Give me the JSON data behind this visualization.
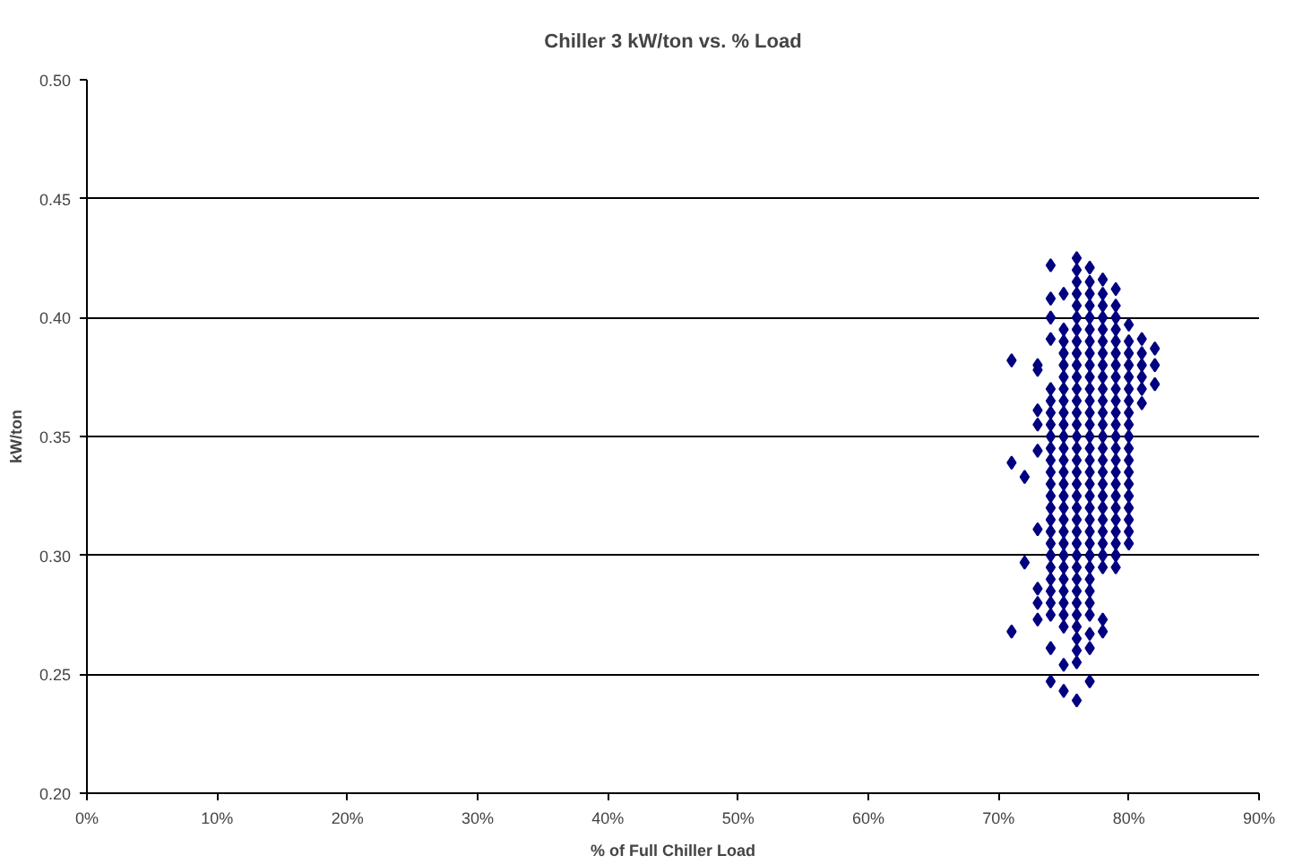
{
  "chart_data": {
    "type": "scatter",
    "title": "Chiller 3 kW/ton vs. % Load",
    "xlabel": "% of Full Chiller Load",
    "ylabel": "kW/ton",
    "xlim": [
      0,
      90
    ],
    "ylim": [
      0.2,
      0.5
    ],
    "xticks": [
      {
        "value": 0,
        "label": "0%"
      },
      {
        "value": 10,
        "label": "10%"
      },
      {
        "value": 20,
        "label": "20%"
      },
      {
        "value": 30,
        "label": "30%"
      },
      {
        "value": 40,
        "label": "40%"
      },
      {
        "value": 50,
        "label": "50%"
      },
      {
        "value": 60,
        "label": "60%"
      },
      {
        "value": 70,
        "label": "70%"
      },
      {
        "value": 80,
        "label": "80%"
      },
      {
        "value": 90,
        "label": "90%"
      }
    ],
    "yticks": [
      {
        "value": 0.2,
        "label": "0.20"
      },
      {
        "value": 0.25,
        "label": "0.25"
      },
      {
        "value": 0.3,
        "label": "0.30"
      },
      {
        "value": 0.35,
        "label": "0.35"
      },
      {
        "value": 0.4,
        "label": "0.40"
      },
      {
        "value": 0.45,
        "label": "0.45"
      },
      {
        "value": 0.5,
        "label": "0.50"
      }
    ],
    "grid": "y",
    "marker": "diamond",
    "series": [
      {
        "color": "#000080",
        "x": [
          71,
          71,
          71
        ],
        "values": [
          0.382,
          0.339,
          0.268
        ]
      },
      {
        "color": "#000080",
        "x": [
          72,
          72
        ],
        "values": [
          0.333,
          0.297
        ]
      },
      {
        "color": "#000080",
        "x": [
          73,
          73,
          73,
          73,
          73,
          73,
          73,
          73,
          73
        ],
        "values": [
          0.38,
          0.378,
          0.361,
          0.355,
          0.344,
          0.311,
          0.286,
          0.28,
          0.273
        ]
      },
      {
        "color": "#000080",
        "x": [
          74,
          74,
          74,
          74,
          74,
          74,
          74,
          74,
          74,
          74,
          74,
          74,
          74,
          74,
          74,
          74,
          74,
          74,
          74,
          74,
          74,
          74,
          74,
          74,
          74,
          74
        ],
        "values": [
          0.422,
          0.408,
          0.4,
          0.391,
          0.37,
          0.365,
          0.36,
          0.355,
          0.35,
          0.345,
          0.34,
          0.335,
          0.33,
          0.325,
          0.32,
          0.315,
          0.31,
          0.305,
          0.3,
          0.295,
          0.29,
          0.285,
          0.28,
          0.275,
          0.261,
          0.247
        ]
      },
      {
        "color": "#000080",
        "x": [
          75,
          75,
          75,
          75,
          75,
          75,
          75,
          75,
          75,
          75,
          75,
          75,
          75,
          75,
          75,
          75,
          75,
          75,
          75,
          75,
          75,
          75,
          75,
          75,
          75,
          75,
          75,
          75,
          75
        ],
        "values": [
          0.41,
          0.395,
          0.39,
          0.385,
          0.38,
          0.375,
          0.37,
          0.365,
          0.36,
          0.355,
          0.35,
          0.345,
          0.34,
          0.335,
          0.33,
          0.325,
          0.32,
          0.315,
          0.31,
          0.305,
          0.3,
          0.295,
          0.29,
          0.285,
          0.28,
          0.275,
          0.27,
          0.254,
          0.243
        ]
      },
      {
        "color": "#000080",
        "x": [
          76,
          76,
          76,
          76,
          76,
          76,
          76,
          76,
          76,
          76,
          76,
          76,
          76,
          76,
          76,
          76,
          76,
          76,
          76,
          76,
          76,
          76,
          76,
          76,
          76,
          76,
          76,
          76,
          76,
          76,
          76,
          76,
          76,
          76,
          76,
          76
        ],
        "values": [
          0.425,
          0.42,
          0.415,
          0.41,
          0.405,
          0.4,
          0.395,
          0.39,
          0.385,
          0.38,
          0.375,
          0.37,
          0.365,
          0.36,
          0.355,
          0.35,
          0.345,
          0.34,
          0.335,
          0.33,
          0.325,
          0.32,
          0.315,
          0.31,
          0.305,
          0.3,
          0.295,
          0.29,
          0.285,
          0.28,
          0.275,
          0.27,
          0.265,
          0.26,
          0.255,
          0.239
        ]
      },
      {
        "color": "#000080",
        "x": [
          77,
          77,
          77,
          77,
          77,
          77,
          77,
          77,
          77,
          77,
          77,
          77,
          77,
          77,
          77,
          77,
          77,
          77,
          77,
          77,
          77,
          77,
          77,
          77,
          77,
          77,
          77,
          77,
          77,
          77,
          77,
          77,
          77
        ],
        "values": [
          0.421,
          0.415,
          0.41,
          0.405,
          0.4,
          0.395,
          0.39,
          0.385,
          0.38,
          0.375,
          0.37,
          0.365,
          0.36,
          0.355,
          0.35,
          0.345,
          0.34,
          0.335,
          0.33,
          0.325,
          0.32,
          0.315,
          0.31,
          0.305,
          0.3,
          0.295,
          0.29,
          0.285,
          0.28,
          0.275,
          0.267,
          0.261,
          0.247
        ]
      },
      {
        "color": "#000080",
        "x": [
          78,
          78,
          78,
          78,
          78,
          78,
          78,
          78,
          78,
          78,
          78,
          78,
          78,
          78,
          78,
          78,
          78,
          78,
          78,
          78,
          78,
          78,
          78,
          78,
          78,
          78,
          78
        ],
        "values": [
          0.416,
          0.41,
          0.405,
          0.4,
          0.395,
          0.39,
          0.385,
          0.38,
          0.375,
          0.37,
          0.365,
          0.36,
          0.355,
          0.35,
          0.345,
          0.34,
          0.335,
          0.33,
          0.325,
          0.32,
          0.315,
          0.31,
          0.305,
          0.3,
          0.295,
          0.273,
          0.268
        ]
      },
      {
        "color": "#000080",
        "x": [
          79,
          79,
          79,
          79,
          79,
          79,
          79,
          79,
          79,
          79,
          79,
          79,
          79,
          79,
          79,
          79,
          79,
          79,
          79,
          79,
          79,
          79,
          79,
          79
        ],
        "values": [
          0.412,
          0.405,
          0.4,
          0.395,
          0.39,
          0.385,
          0.38,
          0.375,
          0.37,
          0.365,
          0.36,
          0.355,
          0.35,
          0.345,
          0.34,
          0.335,
          0.33,
          0.325,
          0.32,
          0.315,
          0.31,
          0.305,
          0.3,
          0.295
        ]
      },
      {
        "color": "#000080",
        "x": [
          80,
          80,
          80,
          80,
          80,
          80,
          80,
          80,
          80,
          80,
          80,
          80,
          80,
          80,
          80,
          80,
          80,
          80,
          80
        ],
        "values": [
          0.397,
          0.39,
          0.385,
          0.38,
          0.375,
          0.37,
          0.365,
          0.36,
          0.355,
          0.35,
          0.345,
          0.34,
          0.335,
          0.33,
          0.325,
          0.32,
          0.315,
          0.31,
          0.305
        ]
      },
      {
        "color": "#000080",
        "x": [
          81,
          81,
          81,
          81,
          81,
          81
        ],
        "values": [
          0.391,
          0.385,
          0.38,
          0.375,
          0.37,
          0.364
        ]
      },
      {
        "color": "#000080",
        "x": [
          82,
          82,
          82
        ],
        "values": [
          0.387,
          0.38,
          0.372
        ]
      }
    ]
  }
}
